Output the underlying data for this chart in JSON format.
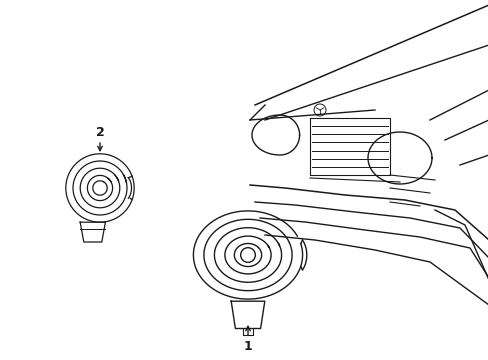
{
  "background_color": "#ffffff",
  "line_color": "#1a1a1a",
  "fig_width": 4.89,
  "fig_height": 3.6,
  "dpi": 100,
  "label1_text": "1",
  "label2_text": "2"
}
